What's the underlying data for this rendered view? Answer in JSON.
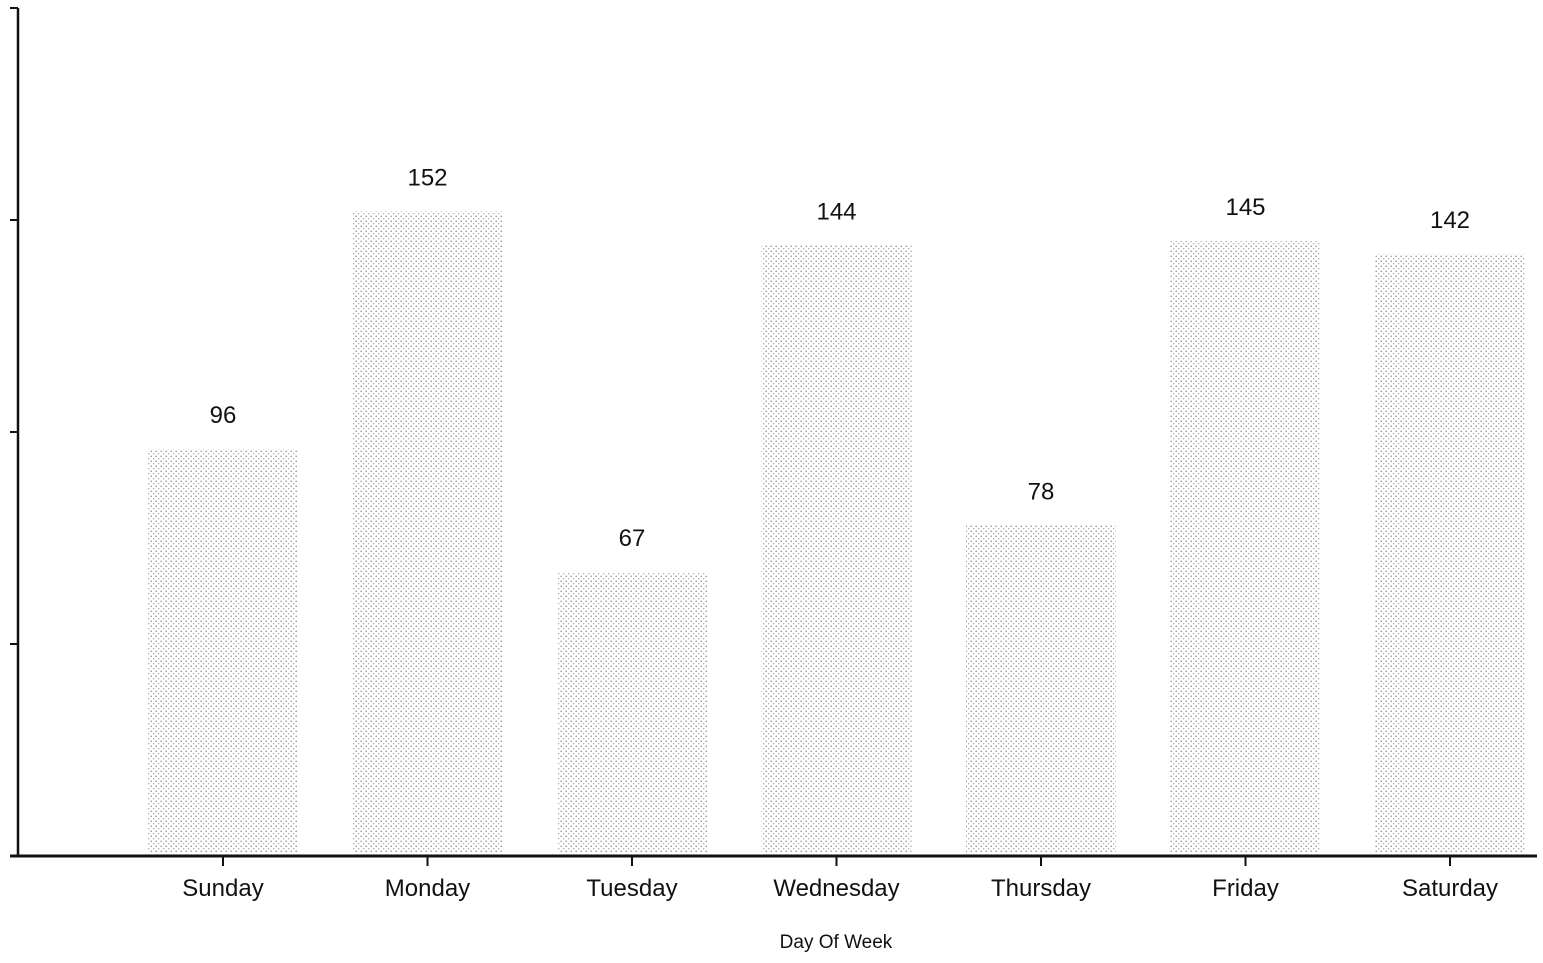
{
  "chart_data": {
    "type": "bar",
    "title": "",
    "xlabel": "Day Of Week",
    "ylabel": "",
    "categories": [
      "Sunday",
      "Monday",
      "Tuesday",
      "Wednesday",
      "Thursday",
      "Friday",
      "Saturday"
    ],
    "values": [
      96,
      152,
      67,
      144,
      78,
      145,
      142
    ],
    "ylim": [
      0,
      200
    ],
    "ytick_values": [
      0,
      50,
      100,
      150,
      200
    ],
    "ytick_labels_shown": false,
    "grid": false,
    "legend": "none",
    "bar_fill": "stippled-gray",
    "colors": {
      "bar_dot": "#8a8a8a",
      "axis": "#111111",
      "text": "#111111"
    }
  }
}
